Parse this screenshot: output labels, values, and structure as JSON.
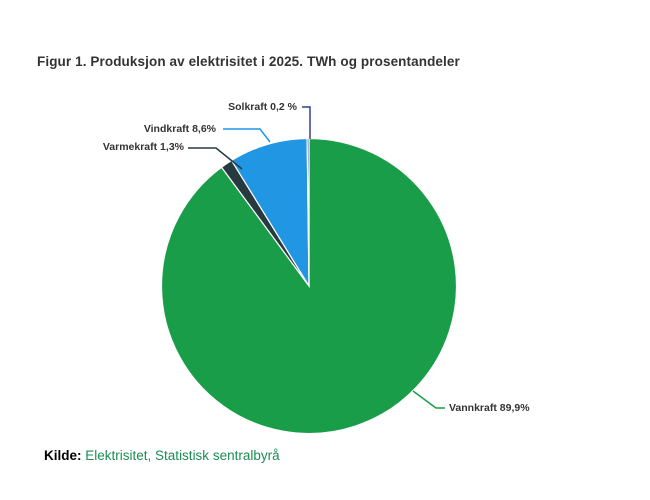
{
  "title": "Figur 1. Produksjon av elektrisitet i 2025. TWh og prosentandeler",
  "source": {
    "prefix": "Kilde:",
    "text": "Elektrisitet, Statistisk sentralbyrå"
  },
  "colors": {
    "vannkraft": "#1a9d49",
    "varmekraft": "#273a40",
    "vindkraft": "#2196e3",
    "solkraft": "#2e4090",
    "source_link_green": "#1d8c54",
    "text": "#333333",
    "slice_stroke": "#ffffff"
  },
  "chart_data": {
    "type": "pie",
    "title": "Figur 1. Produksjon av elektrisitet i 2025. TWh og prosentandeler",
    "unit": "percent share of electricity production (TWh)",
    "start_angle_deg": 0,
    "direction": "clockwise",
    "legend_position": "callout-labels",
    "slices": [
      {
        "label": "Vannkraft",
        "value": 89.9,
        "display": "Vannkraft 89,9%",
        "color": "#1a9d49"
      },
      {
        "label": "Varmekraft",
        "value": 1.3,
        "display": "Varmekraft 1,3%",
        "color": "#273a40"
      },
      {
        "label": "Vindkraft",
        "value": 8.6,
        "display": "Vindkraft 8,6%",
        "color": "#2196e3"
      },
      {
        "label": "Solkraft",
        "value": 0.2,
        "display": "Solkraft 0,2 %",
        "color": "#2e4090"
      }
    ]
  }
}
